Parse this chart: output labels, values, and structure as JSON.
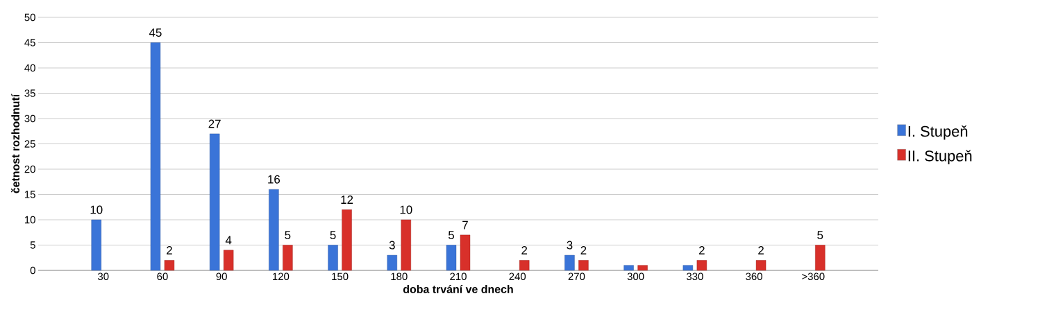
{
  "chart_data": {
    "type": "bar",
    "xlabel": "doba trvání ve dnech",
    "ylabel": "četnost rozhodnutí",
    "categories": [
      "30",
      "60",
      "90",
      "120",
      "150",
      "180",
      "210",
      "240",
      "270",
      "300",
      "330",
      "360",
      ">360"
    ],
    "series": [
      {
        "name": "I. Stupeň",
        "color": "#3a74d8",
        "values": [
          10,
          45,
          27,
          16,
          5,
          3,
          5,
          null,
          3,
          1,
          1,
          null,
          null
        ],
        "value_labels": [
          "10",
          "45",
          "27",
          "16",
          "5",
          "3",
          "5",
          null,
          "3",
          null,
          null,
          null,
          null
        ]
      },
      {
        "name": "II. Stupeň",
        "color": "#d8302a",
        "values": [
          null,
          2,
          4,
          5,
          12,
          10,
          7,
          2,
          2,
          1,
          2,
          2,
          5
        ],
        "value_labels": [
          null,
          "2",
          "4",
          "5",
          "12",
          "10",
          "7",
          "2",
          "2",
          null,
          "2",
          "2",
          "5"
        ]
      }
    ],
    "ylim": [
      0,
      50
    ],
    "yticks": [
      0,
      5,
      10,
      15,
      20,
      25,
      30,
      35,
      40,
      45,
      50
    ],
    "grid": "y",
    "legend": "right"
  }
}
